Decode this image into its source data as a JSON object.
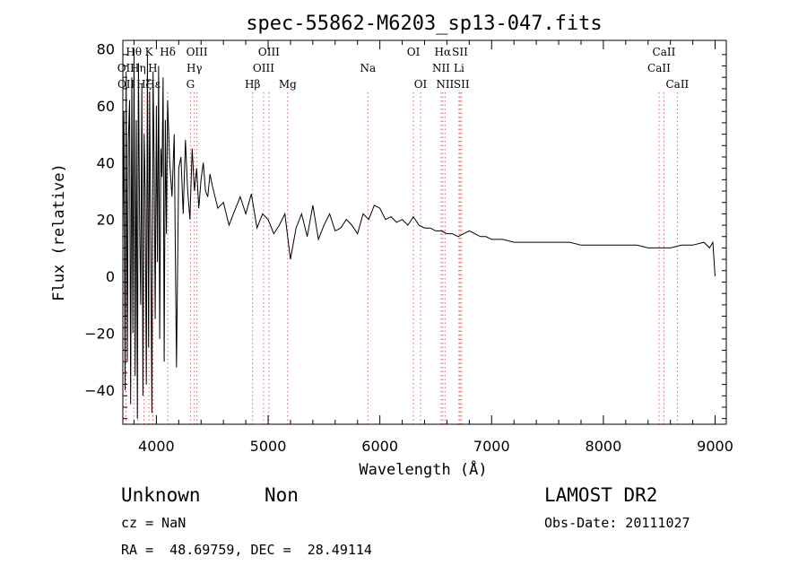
{
  "chart_data": {
    "type": "line",
    "title": "spec-55862-M6203_sp13-047.fits",
    "xlabel": "Wavelength (Å)",
    "ylabel": "Flux (relative)",
    "xlim": [
      3700,
      9100
    ],
    "ylim": [
      -52,
      83
    ],
    "x_ticks": [
      4000,
      5000,
      6000,
      7000,
      8000,
      9000
    ],
    "y_ticks": [
      -40,
      -20,
      0,
      20,
      40,
      60,
      80
    ],
    "x_tick_labels": [
      "4000",
      "5000",
      "6000",
      "7000",
      "8000",
      "9000"
    ],
    "y_tick_labels": [
      "−40",
      "−20",
      "0",
      "20",
      "40",
      "60",
      "80"
    ],
    "grid": false,
    "series": [
      {
        "x": [
          3700,
          3710,
          3720,
          3730,
          3740,
          3750,
          3760,
          3770,
          3780,
          3790,
          3800,
          3810,
          3820,
          3830,
          3840,
          3850,
          3860,
          3870,
          3880,
          3890,
          3900,
          3910,
          3920,
          3930,
          3940,
          3950,
          3960,
          3970,
          3980,
          3990,
          4000,
          4010,
          4020,
          4030,
          4040,
          4050,
          4060,
          4070,
          4080,
          4090,
          4100,
          4120,
          4140,
          4160,
          4180,
          4200,
          4220,
          4240,
          4260,
          4280,
          4300,
          4320,
          4340,
          4360,
          4380,
          4400,
          4420,
          4440,
          4460,
          4480,
          4500,
          4550,
          4600,
          4650,
          4700,
          4750,
          4800,
          4850,
          4900,
          4950,
          5000,
          5050,
          5100,
          5150,
          5200,
          5250,
          5300,
          5350,
          5400,
          5450,
          5500,
          5550,
          5600,
          5650,
          5700,
          5750,
          5800,
          5850,
          5900,
          5950,
          6000,
          6050,
          6100,
          6150,
          6200,
          6250,
          6300,
          6350,
          6400,
          6450,
          6500,
          6550,
          6600,
          6650,
          6700,
          6750,
          6800,
          6850,
          6900,
          6950,
          7000,
          7100,
          7200,
          7300,
          7400,
          7500,
          7600,
          7700,
          7800,
          7900,
          8000,
          8100,
          8200,
          8300,
          8400,
          8500,
          8600,
          8700,
          8800,
          8900,
          8950,
          8980,
          9000
        ],
        "y": [
          15,
          58,
          -40,
          72,
          -30,
          48,
          62,
          -45,
          70,
          -20,
          80,
          -35,
          55,
          -50,
          75,
          20,
          -10,
          68,
          -42,
          50,
          30,
          -38,
          78,
          -25,
          65,
          10,
          -48,
          72,
          40,
          -15,
          60,
          5,
          74,
          -22,
          45,
          35,
          70,
          -30,
          55,
          15,
          62,
          40,
          28,
          50,
          -32,
          38,
          42,
          22,
          48,
          30,
          20,
          45,
          30,
          38,
          24,
          34,
          40,
          30,
          28,
          36,
          32,
          24,
          26,
          18,
          23,
          28,
          22,
          29,
          17,
          22,
          20,
          15,
          18,
          22,
          6,
          17,
          22,
          14,
          25,
          13,
          18,
          22,
          16,
          17,
          20,
          18,
          15,
          22,
          20,
          25,
          24,
          20,
          21,
          19,
          20,
          18,
          21,
          18,
          17,
          17,
          16,
          16,
          15,
          15,
          14,
          15,
          16,
          15,
          14,
          14,
          13,
          13,
          12,
          12,
          12,
          12,
          12,
          12,
          11,
          11,
          11,
          11,
          11,
          11,
          10,
          10,
          10,
          11,
          11,
          12,
          10,
          12,
          0
        ]
      }
    ],
    "lines": [
      {
        "label": "Hθ",
        "x": 3798,
        "row": 1
      },
      {
        "label": "K",
        "x": 3934,
        "row": 1
      },
      {
        "label": "Hδ",
        "x": 4102,
        "row": 1
      },
      {
        "label": "OIII",
        "x": 4363,
        "row": 1
      },
      {
        "label": "OIII",
        "x": 5007,
        "row": 1
      },
      {
        "label": "OI",
        "x": 6300,
        "row": 1
      },
      {
        "label": "Hα",
        "x": 6563,
        "row": 1
      },
      {
        "label": "SII",
        "x": 6717,
        "row": 1
      },
      {
        "label": "CaII",
        "x": 8542,
        "row": 1
      },
      {
        "label": "OII",
        "x": 3727,
        "row": 2
      },
      {
        "label": "Hη",
        "x": 3835,
        "row": 2
      },
      {
        "label": "H",
        "x": 3968,
        "row": 2
      },
      {
        "label": "Hγ",
        "x": 4340,
        "row": 2
      },
      {
        "label": "OIII",
        "x": 4959,
        "row": 2
      },
      {
        "label": "Na",
        "x": 5893,
        "row": 2
      },
      {
        "label": "NII",
        "x": 6548,
        "row": 2
      },
      {
        "label": "Li",
        "x": 6708,
        "row": 2
      },
      {
        "label": "CaII",
        "x": 8498,
        "row": 2
      },
      {
        "label": "OII",
        "x": 3729,
        "row": 3
      },
      {
        "label": "Hζ",
        "x": 3889,
        "row": 3
      },
      {
        "label": "Hε",
        "x": 3970,
        "row": 3
      },
      {
        "label": "G",
        "x": 4305,
        "row": 3
      },
      {
        "label": "Hβ",
        "x": 4861,
        "row": 3
      },
      {
        "label": "Mg",
        "x": 5175,
        "row": 3
      },
      {
        "label": "OI",
        "x": 6364,
        "row": 3
      },
      {
        "label": "NII",
        "x": 6583,
        "row": 3
      },
      {
        "label": "SII",
        "x": 6731,
        "row": 3
      },
      {
        "label": "CaII",
        "x": 8662,
        "row": 3
      }
    ]
  },
  "info": {
    "class": "Unknown",
    "subclass": "Non",
    "survey": "LAMOST DR2",
    "cz": "cz = NaN",
    "obs_date": "Obs-Date: 20111027",
    "coords": "RA =  48.69759, DEC =  28.49114"
  },
  "colors": {
    "axis": "#000000",
    "spectrum": "#000000",
    "line_marker": "#e06060"
  }
}
